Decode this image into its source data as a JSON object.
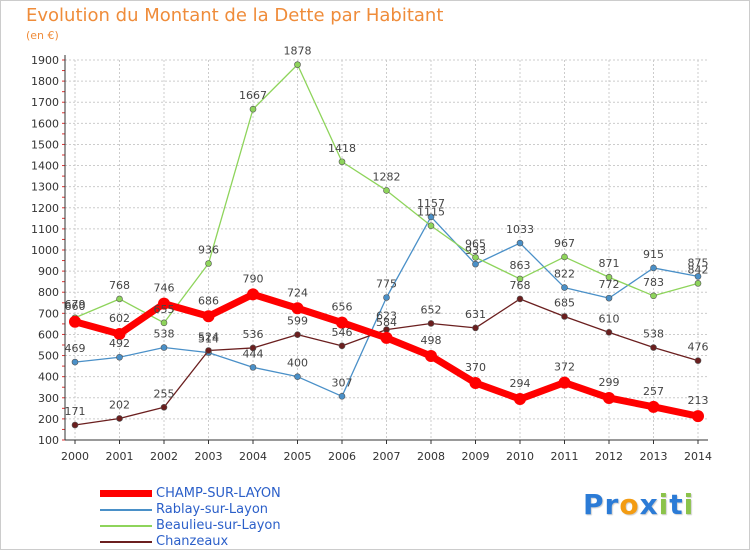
{
  "header": {
    "title": "Evolution du Montant de la Dette par Habitant",
    "subtitle": "(en €)"
  },
  "colors": {
    "title": "#ef8c3a",
    "grid": "#cccccc",
    "axis": "#333333"
  },
  "logo": {
    "text": "Proxiti",
    "letters": [
      "P",
      "r",
      "o",
      "x",
      "i",
      "t",
      "i"
    ],
    "letter_colors": [
      "#2b7bd6",
      "#2b7bd6",
      "#f39c12",
      "#2b7bd6",
      "#8bc34a",
      "#2b7bd6",
      "#8bc34a"
    ]
  },
  "chart_data": {
    "type": "line",
    "x": [
      "2000",
      "2001",
      "2002",
      "2003",
      "2004",
      "2005",
      "2006",
      "2007",
      "2008",
      "2009",
      "2010",
      "2011",
      "2012",
      "2013",
      "2014"
    ],
    "y_ticks": [
      "100",
      "200",
      "300",
      "400",
      "500",
      "600",
      "700",
      "800",
      "900",
      "1000",
      "1100",
      "1200",
      "1300",
      "1400",
      "1500",
      "1600",
      "1700",
      "1800",
      "1900"
    ],
    "ylim": [
      100,
      1900
    ],
    "grid": true,
    "legend_position": "bottom-left",
    "series": [
      {
        "name": "Rablay-sur-Layon",
        "color": "#4a90c8",
        "values": [
          469,
          492,
          538,
          514,
          444,
          400,
          307,
          775,
          1157,
          933,
          1033,
          822,
          772,
          915,
          875
        ],
        "labels": [
          "469",
          "492",
          "538",
          "514",
          "444",
          "400",
          "307",
          "775",
          "1157",
          "933",
          "1033",
          "822",
          "772",
          "915",
          "875"
        ]
      },
      {
        "name": "Beaulieu-sur-Layon",
        "color": "#8ed45b",
        "values": [
          679,
          768,
          655,
          936,
          1667,
          1878,
          1418,
          1282,
          1115,
          965,
          863,
          967,
          871,
          783,
          842
        ],
        "labels": [
          "679",
          "768",
          "655",
          "936",
          "1667",
          "1878",
          "1418",
          "1282",
          "1115",
          "965",
          "863",
          "967",
          "871",
          "783",
          "842"
        ]
      },
      {
        "name": "Chanzeaux",
        "color": "#6b1f1f",
        "values": [
          171,
          202,
          255,
          524,
          536,
          599,
          546,
          623,
          652,
          631,
          768,
          685,
          610,
          538,
          476
        ],
        "labels": [
          "171",
          "202",
          "255",
          "524",
          "536",
          "599",
          "546",
          "623",
          "652",
          "631",
          "768",
          "685",
          "610",
          "538",
          "476"
        ]
      },
      {
        "name": "CHAMP-SUR-LAYON",
        "color": "#ff0000",
        "values": [
          660,
          602,
          746,
          686,
          790,
          724,
          656,
          584,
          498,
          370,
          294,
          372,
          299,
          257,
          213
        ],
        "labels": [
          "660",
          "602",
          "746",
          "686",
          "790",
          "724",
          "656",
          "584",
          "498",
          "370",
          "294",
          "372",
          "299",
          "257",
          "213"
        ]
      }
    ],
    "legend": [
      {
        "name": "CHAMP-SUR-LAYON",
        "color": "#ff0000",
        "text_color": "#2b5fc9",
        "thick": true
      },
      {
        "name": "Rablay-sur-Layon",
        "color": "#4a90c8",
        "text_color": "#2b5fc9",
        "thick": false
      },
      {
        "name": "Beaulieu-sur-Layon",
        "color": "#8ed45b",
        "text_color": "#2b5fc9",
        "thick": false
      },
      {
        "name": "Chanzeaux",
        "color": "#6b1f1f",
        "text_color": "#2b5fc9",
        "thick": false
      }
    ]
  }
}
